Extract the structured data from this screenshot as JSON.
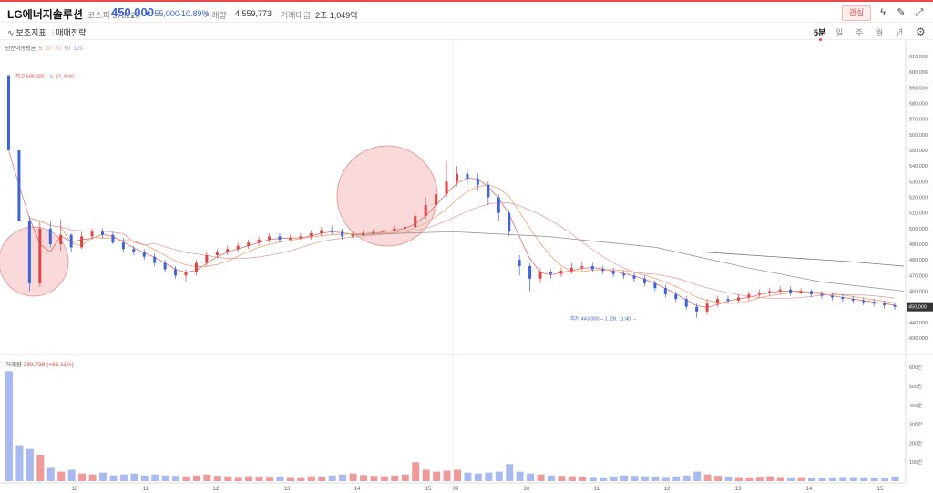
{
  "header": {
    "stock_name": "LG에너지솔루션",
    "market_code": "코스피 373220",
    "price": "450,000",
    "change": "▼ 55,000",
    "change_pct": "-10.89%",
    "volume_label": "거래량",
    "volume_value": "4,559,773",
    "amount_label": "거래대금",
    "amount_value": "2조 1,049억",
    "favorite_label": "관심",
    "colors": {
      "up": "#e04545",
      "down": "#3c63d8"
    }
  },
  "toolbar": {
    "indicator_label": "보조지표",
    "strategy_label": "매매전략",
    "periods": [
      "5분",
      "일",
      "주",
      "월",
      "년"
    ],
    "active_period": "5분"
  },
  "legend": {
    "ma_title": "단순이동평균",
    "ma_periods": [
      "5",
      "10",
      "20",
      "60",
      "120"
    ],
    "ma_colors": [
      "#e36b6b",
      "#f0a36e",
      "#e9a0a0",
      "#a0a0a0",
      "#b58adf"
    ]
  },
  "annotations": {
    "high": "← 최고 598,000 – 1. 27. 9:00",
    "low": "최저 443,000 – 1. 28. 11:40 →",
    "current_price_tag": "450,000"
  },
  "chart_data": [
    {
      "type": "candlestick",
      "title": "",
      "y_ticks": [
        "610,000",
        "600,000",
        "590,000",
        "580,000",
        "570,000",
        "560,000",
        "550,000",
        "540,000",
        "530,000",
        "520,000",
        "510,000",
        "500,000",
        "490,000",
        "480,000",
        "470,000",
        "460,000",
        "450,000",
        "440,000",
        "430,000"
      ],
      "x_ticks": [
        "10",
        "11",
        "12",
        "13",
        "14",
        "15",
        "09",
        "10",
        "11",
        "12",
        "13",
        "14",
        "15"
      ],
      "ylim": [
        430000,
        610000
      ],
      "candles": [
        [
          598000,
          550000,
          598000,
          550000
        ],
        [
          550000,
          505000,
          550000,
          505000
        ],
        [
          505000,
          465000,
          508000,
          460000
        ],
        [
          465000,
          500000,
          505000,
          463000
        ],
        [
          500000,
          490000,
          505000,
          488000
        ],
        [
          490000,
          496000,
          506000,
          486000
        ],
        [
          496000,
          488000,
          497000,
          485000
        ],
        [
          488000,
          495000,
          498000,
          487000
        ],
        [
          495000,
          498000,
          500000,
          493000
        ],
        [
          498000,
          496000,
          500000,
          494000
        ],
        [
          496000,
          491000,
          498000,
          490000
        ],
        [
          491000,
          487000,
          494000,
          485000
        ],
        [
          487000,
          485000,
          489000,
          483000
        ],
        [
          485000,
          482000,
          487000,
          480000
        ],
        [
          482000,
          478000,
          484000,
          476000
        ],
        [
          478000,
          474000,
          480000,
          472000
        ],
        [
          474000,
          470000,
          476000,
          468000
        ],
        [
          470000,
          472000,
          474000,
          466000
        ],
        [
          472000,
          478000,
          480000,
          470000
        ],
        [
          478000,
          483000,
          485000,
          476000
        ],
        [
          483000,
          485000,
          487000,
          481000
        ],
        [
          485000,
          487000,
          489000,
          483000
        ],
        [
          487000,
          489000,
          491000,
          485000
        ],
        [
          489000,
          491000,
          493000,
          487000
        ],
        [
          491000,
          493000,
          495000,
          489000
        ],
        [
          493000,
          495000,
          497000,
          491000
        ],
        [
          495000,
          493000,
          497000,
          491000
        ],
        [
          493000,
          494000,
          496000,
          492000
        ],
        [
          494000,
          495000,
          497000,
          493000
        ],
        [
          495000,
          497000,
          499000,
          493000
        ],
        [
          497000,
          499000,
          501000,
          495000
        ],
        [
          499000,
          498000,
          502000,
          496000
        ],
        [
          498000,
          495000,
          500000,
          493000
        ],
        [
          495000,
          496000,
          498000,
          494000
        ],
        [
          496000,
          497000,
          499000,
          495000
        ],
        [
          497000,
          498000,
          500000,
          496000
        ],
        [
          498000,
          499000,
          501000,
          497000
        ],
        [
          499000,
          500000,
          502000,
          498000
        ],
        [
          500000,
          501000,
          503000,
          499000
        ],
        [
          501000,
          508000,
          512000,
          500000
        ],
        [
          508000,
          515000,
          520000,
          506000
        ],
        [
          515000,
          522000,
          528000,
          513000
        ],
        [
          522000,
          530000,
          543000,
          520000
        ],
        [
          530000,
          535000,
          540000,
          527000
        ],
        [
          535000,
          532000,
          538000,
          528000
        ],
        [
          532000,
          528000,
          535000,
          524000
        ],
        [
          528000,
          520000,
          530000,
          515000
        ],
        [
          520000,
          510000,
          522000,
          505000
        ],
        [
          510000,
          498000,
          512000,
          495000
        ],
        [
          480000,
          476000,
          483000,
          470000
        ],
        [
          476000,
          468000,
          478000,
          460000
        ],
        [
          468000,
          472000,
          475000,
          465000
        ],
        [
          472000,
          471000,
          474000,
          468000
        ],
        [
          471000,
          473000,
          475000,
          469000
        ],
        [
          473000,
          475000,
          478000,
          471000
        ],
        [
          475000,
          476000,
          479000,
          473000
        ],
        [
          476000,
          474000,
          478000,
          472000
        ],
        [
          474000,
          473000,
          476000,
          471000
        ],
        [
          473000,
          471000,
          475000,
          469000
        ],
        [
          471000,
          470000,
          473000,
          468000
        ],
        [
          470000,
          468000,
          472000,
          466000
        ],
        [
          468000,
          465000,
          470000,
          463000
        ],
        [
          465000,
          462000,
          467000,
          460000
        ],
        [
          462000,
          458000,
          464000,
          456000
        ],
        [
          458000,
          455000,
          460000,
          453000
        ],
        [
          455000,
          450000,
          457000,
          448000
        ],
        [
          450000,
          447000,
          452000,
          443000
        ],
        [
          447000,
          452000,
          455000,
          445000
        ],
        [
          452000,
          455000,
          457000,
          450000
        ],
        [
          455000,
          454000,
          457000,
          452000
        ],
        [
          454000,
          456000,
          458000,
          452000
        ],
        [
          456000,
          458000,
          460000,
          454000
        ],
        [
          458000,
          459000,
          461000,
          456000
        ],
        [
          459000,
          460000,
          462000,
          457000
        ],
        [
          460000,
          461000,
          463000,
          458000
        ],
        [
          461000,
          459000,
          463000,
          457000
        ],
        [
          459000,
          460000,
          462000,
          458000
        ],
        [
          460000,
          458000,
          461000,
          456000
        ],
        [
          458000,
          457000,
          460000,
          455000
        ],
        [
          457000,
          456000,
          459000,
          454000
        ],
        [
          456000,
          455000,
          458000,
          453000
        ],
        [
          455000,
          454000,
          457000,
          452000
        ],
        [
          454000,
          453000,
          456000,
          451000
        ],
        [
          453000,
          452000,
          455000,
          450000
        ],
        [
          452000,
          451000,
          454000,
          449000
        ],
        [
          451000,
          450000,
          453000,
          448000
        ]
      ]
    },
    {
      "type": "bar",
      "title": "",
      "ylabel": "거래량",
      "volume_value": "289,738",
      "volume_pct": "(+86.11%)",
      "y_ticks": [
        "600만",
        "500만",
        "400만",
        "300만",
        "200만",
        "100만"
      ],
      "ylim": [
        0,
        6000000
      ],
      "values": [
        5800000,
        1900000,
        1700000,
        1400000,
        700000,
        500000,
        600000,
        400000,
        350000,
        450000,
        300000,
        350000,
        400000,
        300000,
        350000,
        300000,
        280000,
        250000,
        300000,
        350000,
        280000,
        250000,
        220000,
        260000,
        240000,
        230000,
        250000,
        220000,
        210000,
        260000,
        240000,
        300000,
        350000,
        400000,
        320000,
        280000,
        260000,
        300000,
        350000,
        1000000,
        600000,
        500000,
        550000,
        600000,
        450000,
        400000,
        450000,
        500000,
        900000,
        500000,
        400000,
        350000,
        300000,
        280000,
        260000,
        240000,
        220000,
        200000,
        250000,
        300000,
        280000,
        260000,
        240000,
        220000,
        250000,
        300000,
        500000,
        350000,
        280000,
        240000,
        220000,
        200000,
        230000,
        260000,
        220000,
        200000,
        210000,
        190000,
        180000,
        200000,
        220000,
        210000,
        200000,
        190000,
        180000,
        250000
      ]
    }
  ]
}
